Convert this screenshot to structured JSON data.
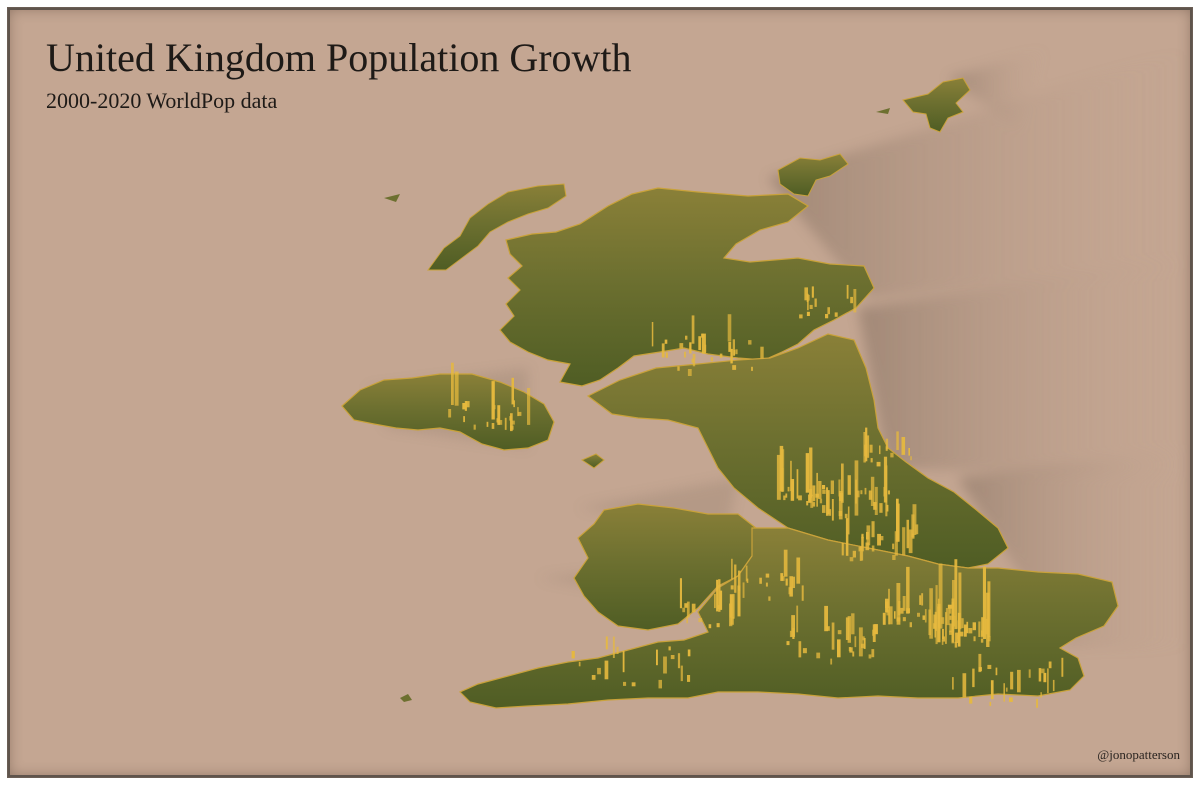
{
  "map": {
    "title": "United Kingdom Population Growth",
    "subtitle": "2000-2020 WorldPop data",
    "credit": "@jonopatterson",
    "colors": {
      "background": "#c4a692",
      "land_top": "#7a7436",
      "land_dark": "#4f5a24",
      "land_light": "#9a8f45",
      "spike": "#e6b93e",
      "shadow": "#9c8574"
    },
    "regions": [
      "Shetland",
      "Orkney",
      "Outer Hebrides",
      "Scotland",
      "Northern Ireland",
      "Isle of Man",
      "England",
      "Wales",
      "Isles of Scilly"
    ]
  }
}
